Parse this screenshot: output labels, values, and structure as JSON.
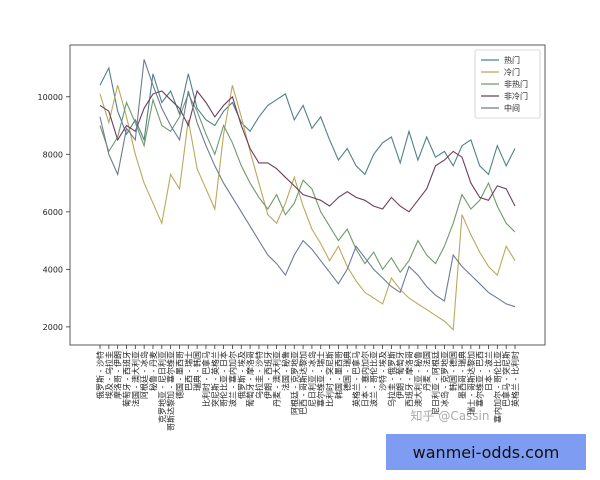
{
  "chart_data": {
    "type": "line",
    "categories": [
      "俄罗斯 - 沙特",
      "埃及 - 乌拉圭",
      "摩洛哥 - 伊朗",
      "葡萄牙 - 西班牙",
      "法国 - 澳大利亚",
      "阿根廷 - 冰岛",
      "秘鲁 - 丹麦",
      "克罗地亚 - 尼日利亚",
      "哥斯达黎加 - 塞尔维亚",
      "德国 - 墨西哥",
      "巴西 - 瑞士",
      "瑞典 - 韩国",
      "比利时 - 巴拿马",
      "突尼斯 - 英格兰",
      "哥伦比亚 - 日本",
      "波兰 - 塞内加尔",
      "俄罗斯 - 埃及",
      "葡萄牙 - 摩洛哥",
      "乌拉圭 - 沙特",
      "伊朗 - 西班牙",
      "丹麦 - 澳大利亚",
      "法国 - 秘鲁",
      "阿根廷 - 克罗地亚",
      "巴西 - 哥斯达黎加",
      "尼日利亚 - 冰岛",
      "塞尔维亚 - 瑞士",
      "比利时 - 突尼斯",
      "韩国 - 墨西哥",
      "德国 - 瑞典",
      "英格兰 - 巴拿马",
      "日本 - 塞内加尔",
      "波兰 - 哥伦比亚",
      "沙特 - 埃及",
      "乌拉圭 - 俄罗斯",
      "伊朗 - 葡萄牙",
      "西班牙 - 摩洛哥",
      "澳大利亚 - 秘鲁",
      "丹麦 - 法国",
      "尼日利亚 - 阿根廷",
      "冰岛 - 克罗地亚",
      "韩国 - 德国",
      "墨西哥 - 瑞典",
      "瑞士 - 哥斯达黎加",
      "塞尔维亚 - 巴西",
      "日本 - 波兰",
      "塞内加尔 - 哥伦比亚",
      "巴拿马 - 突尼斯",
      "英格兰 - 比利时"
    ],
    "series": [
      {
        "name": "热门",
        "color": "#4f8189",
        "values": [
          10400,
          11000,
          9500,
          8700,
          9200,
          8500,
          10800,
          9800,
          10200,
          9400,
          10800,
          9600,
          9200,
          9000,
          9500,
          9800,
          9100,
          8800,
          9300,
          9700,
          9900,
          10100,
          9200,
          9700,
          8900,
          9300,
          8500,
          7800,
          8200,
          7600,
          7300,
          8000,
          8400,
          8600,
          7700,
          8800,
          7800,
          8600,
          7900,
          8100,
          7600,
          8300,
          8500,
          7600,
          7300,
          8300,
          7600,
          8200
        ]
      },
      {
        "name": "冷门",
        "color": "#b9a95a",
        "values": [
          10100,
          9100,
          10400,
          9300,
          8000,
          7000,
          6300,
          5600,
          7300,
          6800,
          9200,
          7500,
          6800,
          6100,
          8700,
          10400,
          9300,
          8100,
          7000,
          5900,
          5600,
          6300,
          7200,
          6200,
          5400,
          4900,
          4300,
          4800,
          4100,
          3600,
          3200,
          3000,
          2800,
          3700,
          3300,
          3000,
          2800,
          2600,
          2400,
          2200,
          1900,
          5900,
          5200,
          4600,
          4100,
          3800,
          4800,
          4300
        ]
      },
      {
        "name": "非热门",
        "color": "#6f9a6a",
        "values": [
          9000,
          8100,
          8600,
          9800,
          9100,
          8300,
          9900,
          9000,
          8800,
          9300,
          10100,
          9500,
          8700,
          8000,
          9000,
          8400,
          7600,
          7000,
          6500,
          6100,
          6600,
          5900,
          6300,
          7100,
          6800,
          6000,
          5500,
          5000,
          5400,
          4700,
          4200,
          4600,
          4000,
          4400,
          3900,
          4300,
          5000,
          4500,
          4200,
          4800,
          5600,
          6600,
          6100,
          6400,
          7000,
          6200,
          5600,
          5300
        ]
      },
      {
        "name": "非冷门",
        "color": "#6e3d5c",
        "values": [
          9700,
          9500,
          8500,
          9000,
          8800,
          9600,
          10100,
          10200,
          9900,
          9600,
          9000,
          10200,
          9800,
          9300,
          9700,
          10000,
          9000,
          8200,
          7700,
          7700,
          7500,
          7200,
          6900,
          6600,
          6500,
          6400,
          6200,
          6500,
          6700,
          6500,
          6400,
          6200,
          6100,
          6500,
          6200,
          6000,
          6400,
          6800,
          7600,
          7800,
          8100,
          7900,
          7000,
          6500,
          6400,
          6900,
          6800,
          6200
        ]
      },
      {
        "name": "中间",
        "color": "#6d7a96",
        "values": [
          9300,
          8000,
          7300,
          8900,
          8500,
          11300,
          10400,
          9600,
          9000,
          8500,
          10200,
          9100,
          8300,
          7600,
          7000,
          6500,
          6000,
          5500,
          5000,
          4500,
          4200,
          3800,
          4500,
          5000,
          4700,
          4300,
          3900,
          3500,
          4000,
          4800,
          4400,
          4000,
          3700,
          3400,
          3200,
          4100,
          3800,
          3400,
          3100,
          2900,
          4500,
          4100,
          3800,
          3500,
          3200,
          3000,
          2800,
          2700
        ]
      }
    ],
    "ylim": [
      1370,
      11800
    ],
    "yticks": [
      2000,
      4000,
      6000,
      8000,
      10000
    ],
    "legend": "upper right",
    "watermark": "知乎 @Cassin",
    "site": "wanmei-odds.com"
  }
}
